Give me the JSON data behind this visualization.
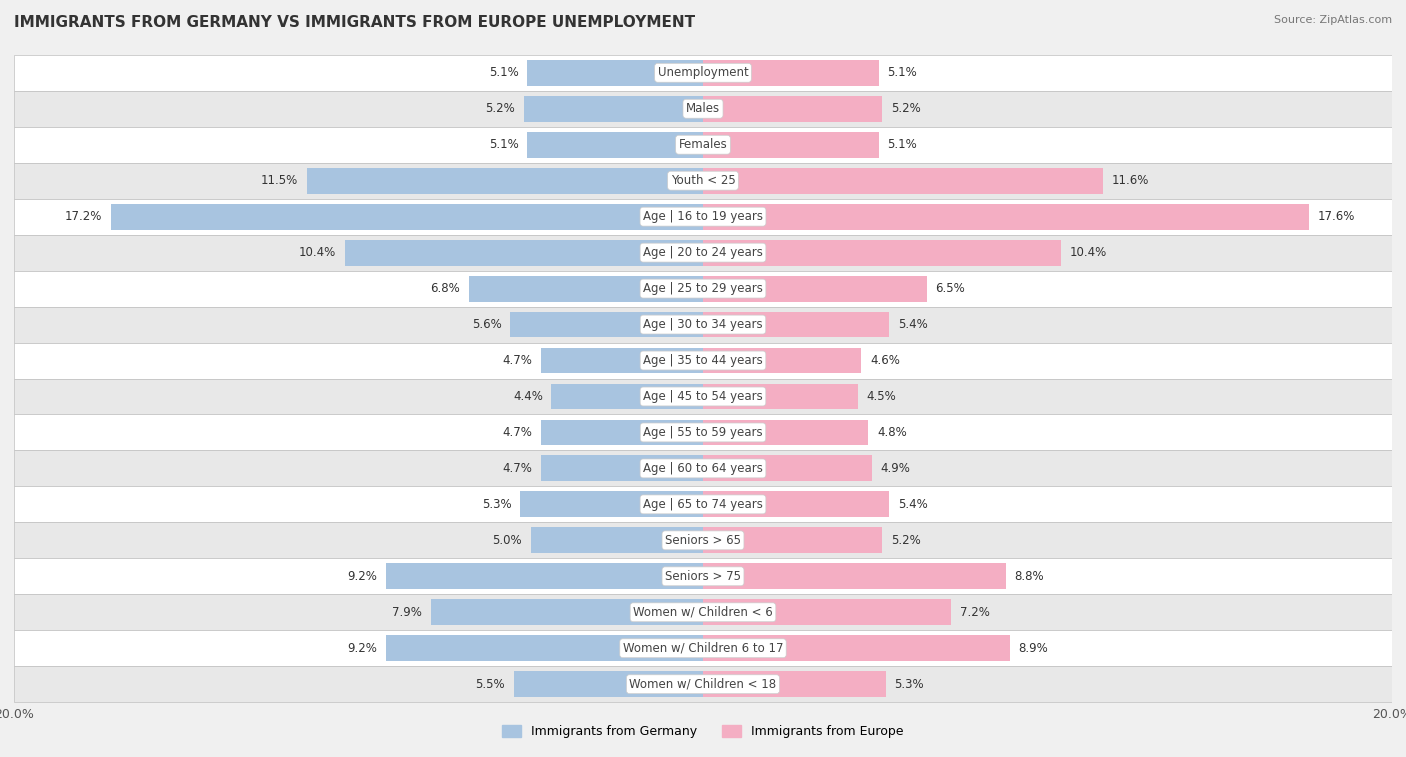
{
  "title": "IMMIGRANTS FROM GERMANY VS IMMIGRANTS FROM EUROPE UNEMPLOYMENT",
  "source": "Source: ZipAtlas.com",
  "categories": [
    "Unemployment",
    "Males",
    "Females",
    "Youth < 25",
    "Age | 16 to 19 years",
    "Age | 20 to 24 years",
    "Age | 25 to 29 years",
    "Age | 30 to 34 years",
    "Age | 35 to 44 years",
    "Age | 45 to 54 years",
    "Age | 55 to 59 years",
    "Age | 60 to 64 years",
    "Age | 65 to 74 years",
    "Seniors > 65",
    "Seniors > 75",
    "Women w/ Children < 6",
    "Women w/ Children 6 to 17",
    "Women w/ Children < 18"
  ],
  "germany_values": [
    5.1,
    5.2,
    5.1,
    11.5,
    17.2,
    10.4,
    6.8,
    5.6,
    4.7,
    4.4,
    4.7,
    4.7,
    5.3,
    5.0,
    9.2,
    7.9,
    9.2,
    5.5
  ],
  "europe_values": [
    5.1,
    5.2,
    5.1,
    11.6,
    17.6,
    10.4,
    6.5,
    5.4,
    4.6,
    4.5,
    4.8,
    4.9,
    5.4,
    5.2,
    8.8,
    7.2,
    8.9,
    5.3
  ],
  "germany_color": "#a8c4e0",
  "europe_color": "#f4aec3",
  "background_color": "#f0f0f0",
  "row_color_even": "#ffffff",
  "row_color_odd": "#e8e8e8",
  "axis_max": 20.0,
  "legend_germany": "Immigrants from Germany",
  "legend_europe": "Immigrants from Europe",
  "title_fontsize": 11,
  "label_fontsize": 8.5,
  "source_fontsize": 8
}
